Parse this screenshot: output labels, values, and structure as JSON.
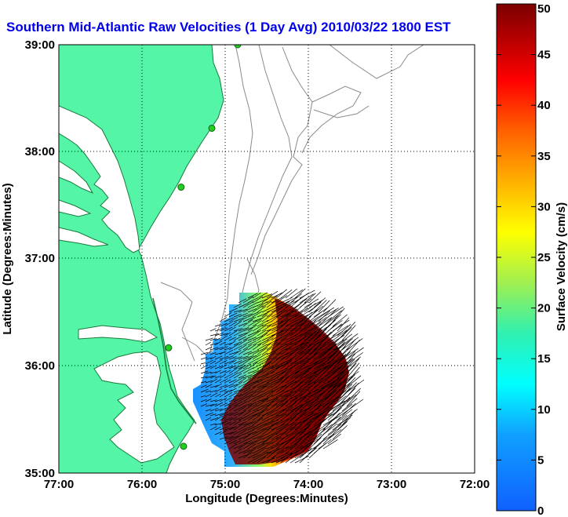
{
  "title": "Southern Mid-Atlantic Raw Velocities (1 Day Avg) 2010/03/22 1800 EST",
  "map": {
    "x_axis_label": "Longitude (Degrees:Minutes)",
    "y_axis_label": "Latitude (Degrees:Minutes)",
    "lon_ticks": [
      "77:00",
      "76:00",
      "75:00",
      "74:00",
      "73:00",
      "72:00"
    ],
    "lat_ticks": [
      "39:00",
      "38:00",
      "37:00",
      "36:00",
      "35:00"
    ],
    "lon_range": [
      -77,
      -72
    ],
    "lat_range": [
      35,
      39
    ],
    "grid": "dotted",
    "land_color": "#55f5a8",
    "coast_color": "#1a7a3a",
    "bathymetry_color": "#8a8a8a",
    "station_color": "#22cc22"
  },
  "colorbar": {
    "label": "Surface Velocity (cm/s)",
    "ticks": [
      "50",
      "45",
      "40",
      "35",
      "30",
      "25",
      "20",
      "15",
      "10",
      "5",
      "0"
    ],
    "range": [
      0,
      50
    ]
  },
  "stations": [
    {
      "lon": -74.85,
      "lat": 39.0
    },
    {
      "lon": -75.16,
      "lat": 38.22
    },
    {
      "lon": -75.53,
      "lat": 37.67
    },
    {
      "lon": -75.68,
      "lat": 36.17
    },
    {
      "lon": -75.5,
      "lat": 35.25
    }
  ]
}
